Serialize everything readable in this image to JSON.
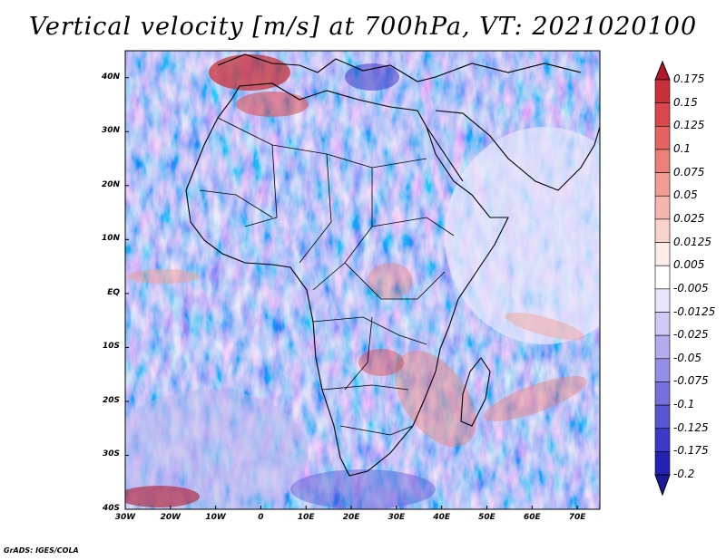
{
  "title": "Vertical velocity [m/s] at 700hPa, VT: 2021020100",
  "credit": "GrADS: IGES/COLA",
  "lat_labels": [
    "40N",
    "30N",
    "20N",
    "10N",
    "EQ",
    "10S",
    "20S",
    "30S",
    "40S"
  ],
  "lat_values": [
    40,
    30,
    20,
    10,
    0,
    -10,
    -20,
    -30,
    -40
  ],
  "lon_labels": [
    "30W",
    "20W",
    "10W",
    "0",
    "10E",
    "20E",
    "30E",
    "40E",
    "50E",
    "60E",
    "70E"
  ],
  "lon_values": [
    -30,
    -20,
    -10,
    0,
    10,
    20,
    30,
    40,
    50,
    60,
    70
  ],
  "colorbar": {
    "labels": [
      "0.175",
      "0.15",
      "0.125",
      "0.1",
      "0.075",
      "0.05",
      "0.025",
      "0.0125",
      "0.005",
      "-0.005",
      "-0.0125",
      "-0.025",
      "-0.05",
      "-0.075",
      "-0.1",
      "-0.125",
      "-0.175",
      "-0.2"
    ],
    "colors": [
      "#b2182b",
      "#c8313a",
      "#d9474c",
      "#e56360",
      "#ec8079",
      "#f19d93",
      "#f5b7ad",
      "#f9d2ca",
      "#fdece8",
      "#ffffff",
      "#e9e6fb",
      "#cfcaf5",
      "#b2acee",
      "#948fe6",
      "#7671dd",
      "#5855d3",
      "#3b39c8",
      "#2222b4",
      "#1a1a9a"
    ]
  },
  "map_extent": {
    "lon_min": -30,
    "lon_max": 75,
    "lat_min": -40,
    "lat_max": 45
  }
}
